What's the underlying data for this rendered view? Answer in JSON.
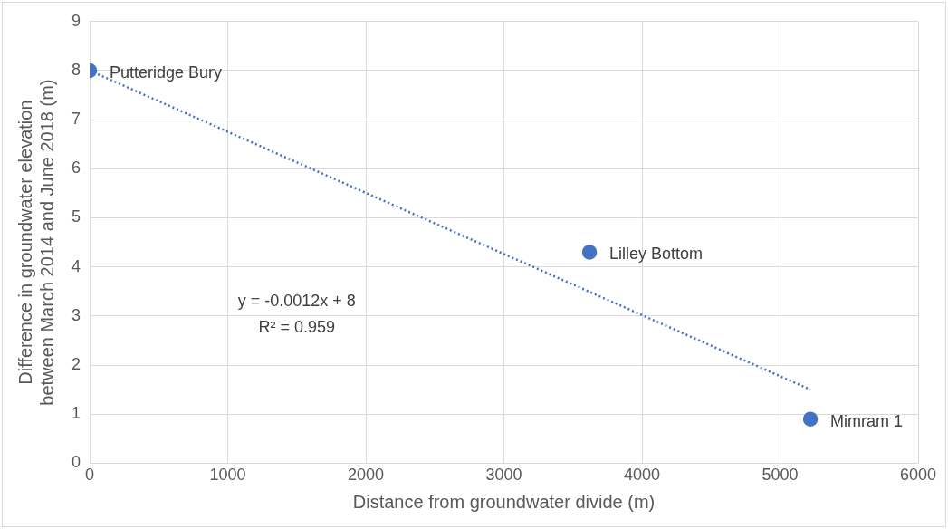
{
  "chart_data": {
    "type": "scatter",
    "xlabel": "Distance from groundwater divide (m)",
    "ylabel": "Difference in groundwater elevation\nbetween March 2014 and June 2018 (m)",
    "xlim": [
      0,
      6000
    ],
    "xticks": [
      0,
      1000,
      2000,
      3000,
      4000,
      5000,
      6000
    ],
    "ylim": [
      0,
      9
    ],
    "yticks": [
      0,
      1,
      2,
      3,
      4,
      5,
      6,
      7,
      8,
      9
    ],
    "grid": true,
    "legend": false,
    "marker": "circle",
    "series": [
      {
        "color": "#4472c4",
        "x": [
          0,
          3620,
          5220
        ],
        "values": [
          8,
          4.3,
          0.9
        ]
      },
      {
        "type": "line",
        "color": "#4472c4",
        "line_style": "dotted",
        "marker": "none",
        "x": [
          0,
          5220
        ],
        "values": [
          8,
          1.5
        ]
      }
    ],
    "annotations": [
      {
        "text": "Putteridge Bury",
        "x": 0,
        "y": 8
      },
      {
        "text": "Lilley Bottom",
        "x": 3620,
        "y": 4.3
      },
      {
        "text": "Mimram 1",
        "x": 5220,
        "y": 0.9
      },
      "y = -0.0012x + 8",
      "R² = 0.959"
    ]
  }
}
